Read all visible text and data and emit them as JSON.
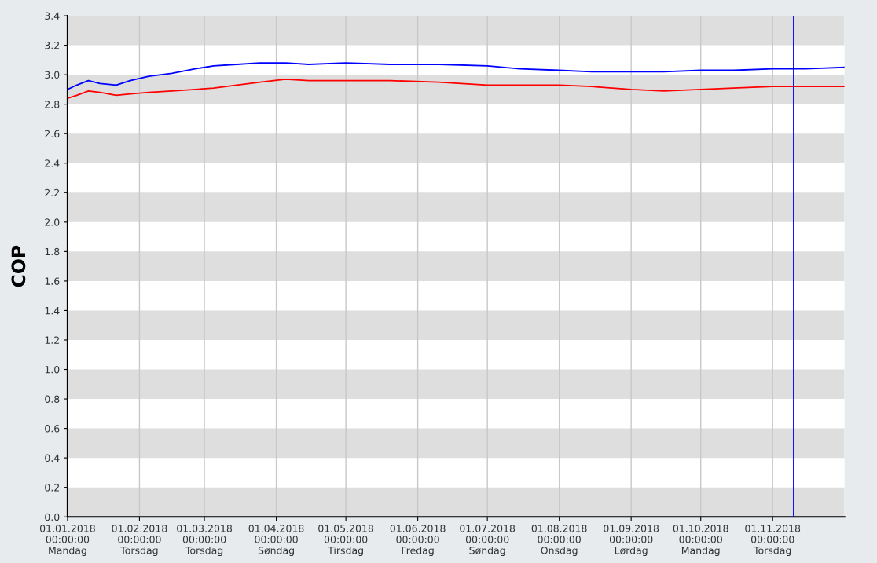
{
  "chart_data": {
    "type": "line",
    "ylabel": "COP",
    "x": [
      "2018-01-01",
      "2018-01-05",
      "2018-01-10",
      "2018-01-15",
      "2018-01-22",
      "2018-01-28",
      "2018-02-05",
      "2018-02-15",
      "2018-02-25",
      "2018-03-05",
      "2018-03-15",
      "2018-03-25",
      "2018-04-05",
      "2018-04-15",
      "2018-05-01",
      "2018-05-20",
      "2018-06-10",
      "2018-07-01",
      "2018-07-15",
      "2018-08-01",
      "2018-08-15",
      "2018-09-01",
      "2018-09-15",
      "2018-10-01",
      "2018-10-15",
      "2018-11-01",
      "2018-11-15",
      "2018-12-02"
    ],
    "series": [
      {
        "color": "#0000ff",
        "values": [
          2.9,
          2.93,
          2.96,
          2.94,
          2.93,
          2.96,
          2.99,
          3.01,
          3.04,
          3.06,
          3.07,
          3.08,
          3.08,
          3.07,
          3.08,
          3.07,
          3.07,
          3.06,
          3.04,
          3.03,
          3.02,
          3.02,
          3.02,
          3.03,
          3.03,
          3.04,
          3.04,
          3.05
        ]
      },
      {
        "color": "#ff0000",
        "values": [
          2.84,
          2.86,
          2.89,
          2.88,
          2.86,
          2.87,
          2.88,
          2.89,
          2.9,
          2.91,
          2.93,
          2.95,
          2.97,
          2.96,
          2.96,
          2.96,
          2.95,
          2.93,
          2.93,
          2.93,
          2.92,
          2.9,
          2.89,
          2.9,
          2.91,
          2.92,
          2.92,
          2.92
        ]
      }
    ],
    "xlim": [
      "2018-01-01",
      "2018-12-02"
    ],
    "xticks": [
      {
        "value": "2018-01-01",
        "label": "01.01.2018\n00:00:00\nMandag"
      },
      {
        "value": "2018-02-01",
        "label": "01.02.2018\n00:00:00\nTorsdag"
      },
      {
        "value": "2018-03-01",
        "label": "01.03.2018\n00:00:00\nTorsdag"
      },
      {
        "value": "2018-04-01",
        "label": "01.04.2018\n00:00:00\nSøndag"
      },
      {
        "value": "2018-05-01",
        "label": "01.05.2018\n00:00:00\nTirsdag"
      },
      {
        "value": "2018-06-01",
        "label": "01.06.2018\n00:00:00\nFredag"
      },
      {
        "value": "2018-07-01",
        "label": "01.07.2018\n00:00:00\nSøndag"
      },
      {
        "value": "2018-08-01",
        "label": "01.08.2018\n00:00:00\nOnsdag"
      },
      {
        "value": "2018-09-01",
        "label": "01.09.2018\n00:00:00\nLørdag"
      },
      {
        "value": "2018-10-01",
        "label": "01.10.2018\n00:00:00\nMandag"
      },
      {
        "value": "2018-11-01",
        "label": "01.11.2018\n00:00:00\nTorsdag"
      }
    ],
    "ylim": [
      0,
      3.4
    ],
    "yticks": [
      {
        "value": 0,
        "label": "0.0"
      },
      {
        "value": 0.2,
        "label": "0.2"
      },
      {
        "value": 0.4,
        "label": "0.4"
      },
      {
        "value": 0.6,
        "label": "0.6"
      },
      {
        "value": 0.8,
        "label": "0.8"
      },
      {
        "value": 1.0,
        "label": "1.0"
      },
      {
        "value": 1.2,
        "label": "1.2"
      },
      {
        "value": 1.4,
        "label": "1.4"
      },
      {
        "value": 1.6,
        "label": "1.6"
      },
      {
        "value": 1.8,
        "label": "1.8"
      },
      {
        "value": 2.0,
        "label": "2.0"
      },
      {
        "value": 2.2,
        "label": "2.2"
      },
      {
        "value": 2.4,
        "label": "2.4"
      },
      {
        "value": 2.6,
        "label": "2.6"
      },
      {
        "value": 2.8,
        "label": "2.8"
      },
      {
        "value": 3.0,
        "label": "3.0"
      },
      {
        "value": 3.2,
        "label": "3.2"
      },
      {
        "value": 3.4,
        "label": "3.4"
      }
    ],
    "grid": "x",
    "marker": "none",
    "line_style": "solid",
    "ref_lines": [
      {
        "axis": "x",
        "value": "2018-11-10",
        "color": "#0000ff",
        "line_style": "solid"
      }
    ],
    "bands": [
      {
        "axis": "y",
        "from": 0,
        "to": 0.2,
        "color": "#dedede"
      },
      {
        "axis": "y",
        "from": 0.4,
        "to": 0.6,
        "color": "#dedede"
      },
      {
        "axis": "y",
        "from": 0.8,
        "to": 1.0,
        "color": "#dedede"
      },
      {
        "axis": "y",
        "from": 1.2,
        "to": 1.4,
        "color": "#dedede"
      },
      {
        "axis": "y",
        "from": 1.6,
        "to": 1.8,
        "color": "#dedede"
      },
      {
        "axis": "y",
        "from": 2.0,
        "to": 2.2,
        "color": "#dedede"
      },
      {
        "axis": "y",
        "from": 2.4,
        "to": 2.6,
        "color": "#dedede"
      },
      {
        "axis": "y",
        "from": 2.8,
        "to": 3.0,
        "color": "#dedede"
      },
      {
        "axis": "y",
        "from": 3.2,
        "to": 3.4,
        "color": "#dedede"
      }
    ]
  }
}
